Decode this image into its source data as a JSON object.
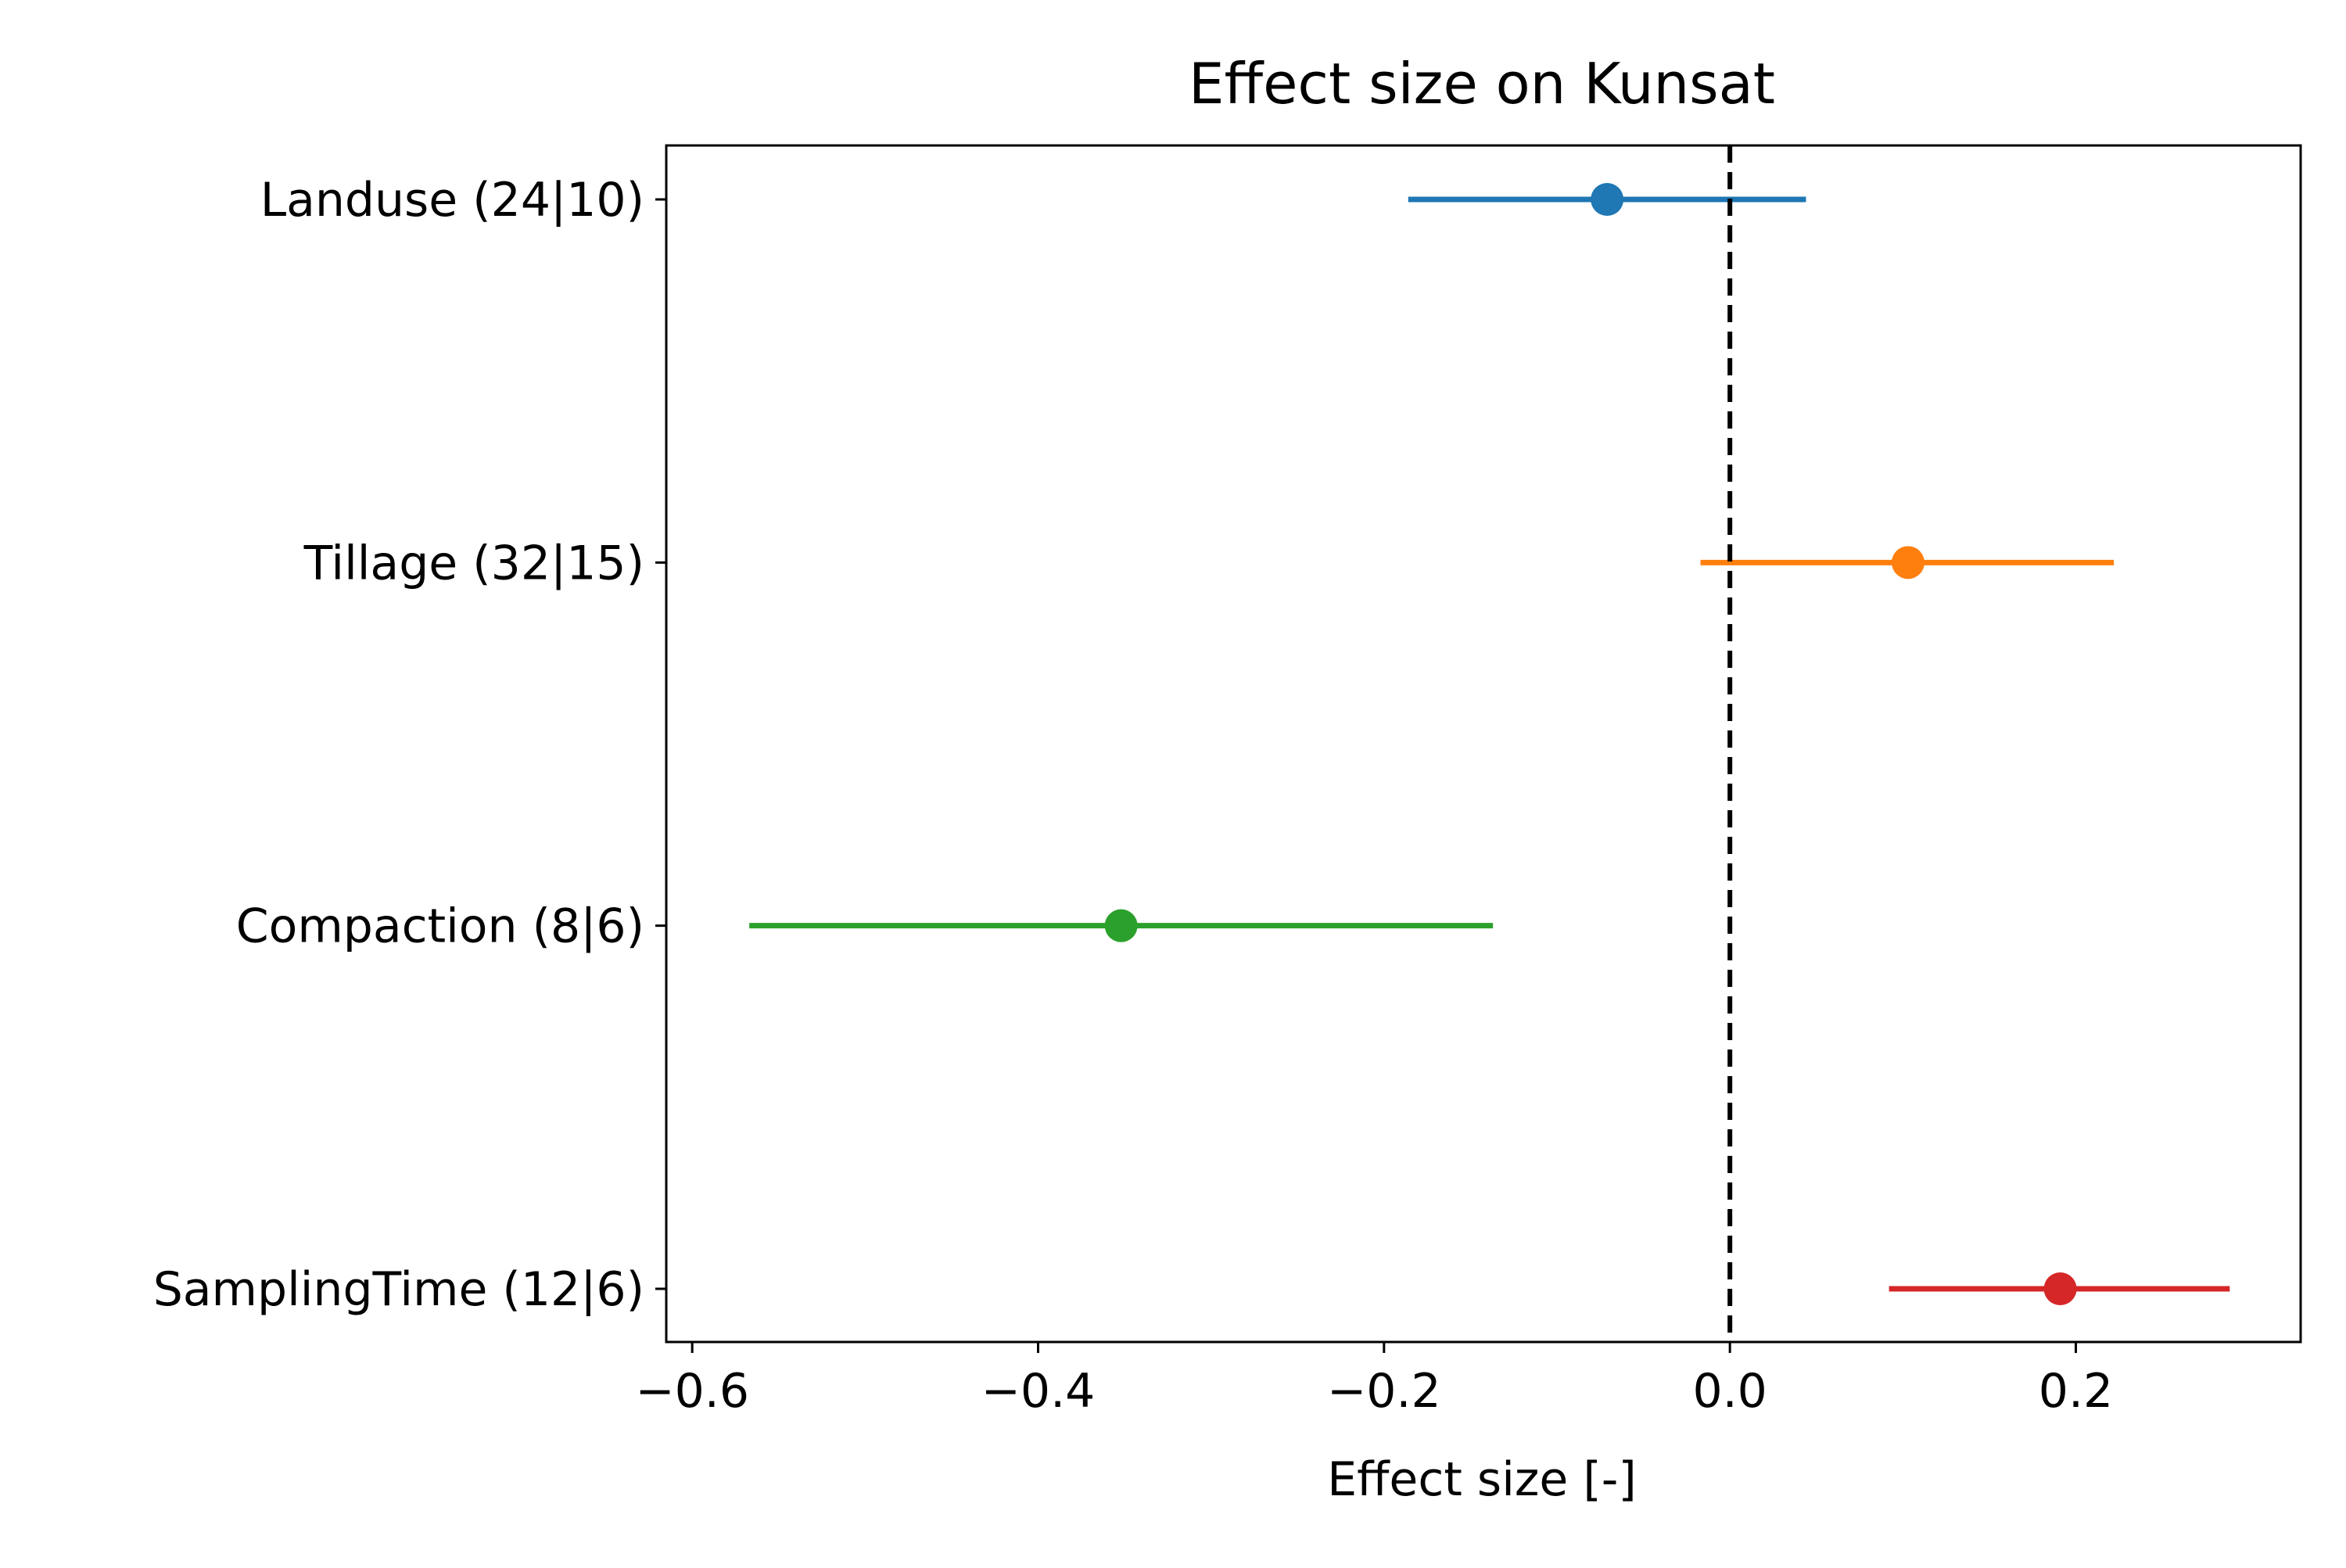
{
  "chart_data": {
    "type": "scatter",
    "title": "Effect size on Kunsat",
    "xlabel": "Effect size [-]",
    "ylabel": "",
    "xlim": [
      -0.615,
      0.33
    ],
    "xticks": [
      -0.6,
      -0.4,
      -0.2,
      0.0,
      0.2
    ],
    "xtick_labels": [
      "−0.6",
      "−0.4",
      "−0.2",
      "0.0",
      "0.2"
    ],
    "reference_line": {
      "x": 0.0,
      "style": "dashed",
      "color": "#000000"
    },
    "grid": false,
    "legend": "none",
    "categories": [
      "Landuse (24|10)",
      "Tillage (32|15)",
      "Compaction (8|6)",
      "SamplingTime (12|6)"
    ],
    "series": [
      {
        "category": "Landuse (24|10)",
        "estimate": -0.071,
        "ci_low": -0.186,
        "ci_high": 0.044,
        "color": "#1f77b4"
      },
      {
        "category": "Tillage (32|15)",
        "estimate": 0.103,
        "ci_low": -0.017,
        "ci_high": 0.222,
        "color": "#ff7f0e"
      },
      {
        "category": "Compaction (8|6)",
        "estimate": -0.352,
        "ci_low": -0.567,
        "ci_high": -0.137,
        "color": "#2ca02c"
      },
      {
        "category": "SamplingTime (12|6)",
        "estimate": 0.191,
        "ci_low": 0.092,
        "ci_high": 0.289,
        "color": "#d62728"
      }
    ]
  }
}
